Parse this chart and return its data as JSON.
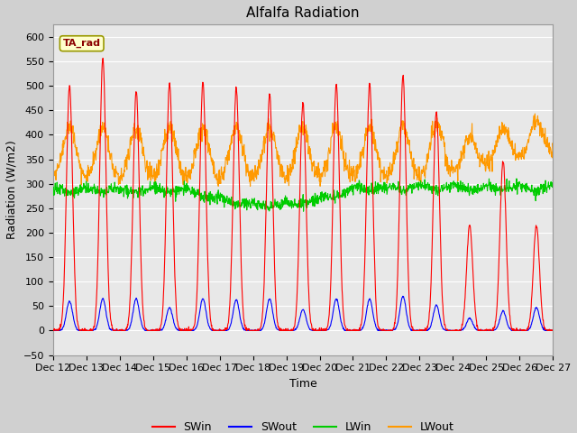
{
  "title": "Alfalfa Radiation",
  "xlabel": "Time",
  "ylabel": "Radiation (W/m2)",
  "ylim": [
    -50,
    625
  ],
  "yticks": [
    -50,
    0,
    50,
    100,
    150,
    200,
    250,
    300,
    350,
    400,
    450,
    500,
    550,
    600
  ],
  "fig_bg_color": "#c8c8c8",
  "plot_bg_color": "#e8e8e8",
  "grid_color": "#ffffff",
  "annotation_text": "TA_rad",
  "annotation_bg": "#ffffcc",
  "annotation_border": "#999900",
  "legend_entries": [
    "SWin",
    "SWout",
    "LWin",
    "LWout"
  ],
  "legend_colors": [
    "#ff0000",
    "#0000ff",
    "#00cc00",
    "#ff9900"
  ],
  "num_days": 15,
  "start_day": 12,
  "end_day": 27,
  "points_per_day": 96,
  "swin_peaks": [
    500,
    556,
    490,
    505,
    508,
    495,
    483,
    465,
    503,
    504,
    519,
    447,
    215,
    345,
    215
  ],
  "swout_peaks": [
    60,
    65,
    65,
    47,
    65,
    63,
    65,
    43,
    65,
    65,
    70,
    52,
    25,
    40,
    47
  ],
  "lwin_base": 290,
  "lwout_base": 305,
  "title_fontsize": 11,
  "label_fontsize": 9,
  "tick_fontsize": 8,
  "linewidth": 0.8
}
